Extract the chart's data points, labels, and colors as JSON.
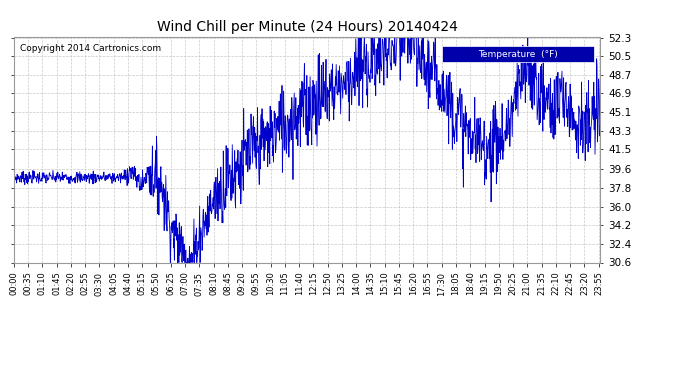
{
  "title": "Wind Chill per Minute (24 Hours) 20140424",
  "copyright": "Copyright 2014 Cartronics.com",
  "legend_label": "Temperature  (°F)",
  "line_color": "#0000CC",
  "background_color": "#ffffff",
  "grid_color": "#bbbbbb",
  "ylim": [
    30.6,
    52.3
  ],
  "yticks": [
    30.6,
    32.4,
    34.2,
    36.0,
    37.8,
    39.6,
    41.5,
    43.3,
    45.1,
    46.9,
    48.7,
    50.5,
    52.3
  ],
  "xtick_labels": [
    "00:00",
    "00:35",
    "01:10",
    "01:45",
    "02:20",
    "02:55",
    "03:30",
    "04:05",
    "04:40",
    "05:15",
    "05:50",
    "06:25",
    "07:00",
    "07:35",
    "08:10",
    "08:45",
    "09:20",
    "09:55",
    "10:30",
    "11:05",
    "11:40",
    "12:15",
    "12:50",
    "13:25",
    "14:00",
    "14:35",
    "15:10",
    "15:45",
    "16:20",
    "16:55",
    "17:30",
    "18:05",
    "18:40",
    "19:15",
    "19:50",
    "20:25",
    "21:00",
    "21:35",
    "22:10",
    "22:45",
    "23:20",
    "23:55"
  ],
  "legend_box_color": "#0000AA",
  "legend_text_color": "#ffffff",
  "figsize": [
    6.9,
    3.75
  ],
  "dpi": 100
}
